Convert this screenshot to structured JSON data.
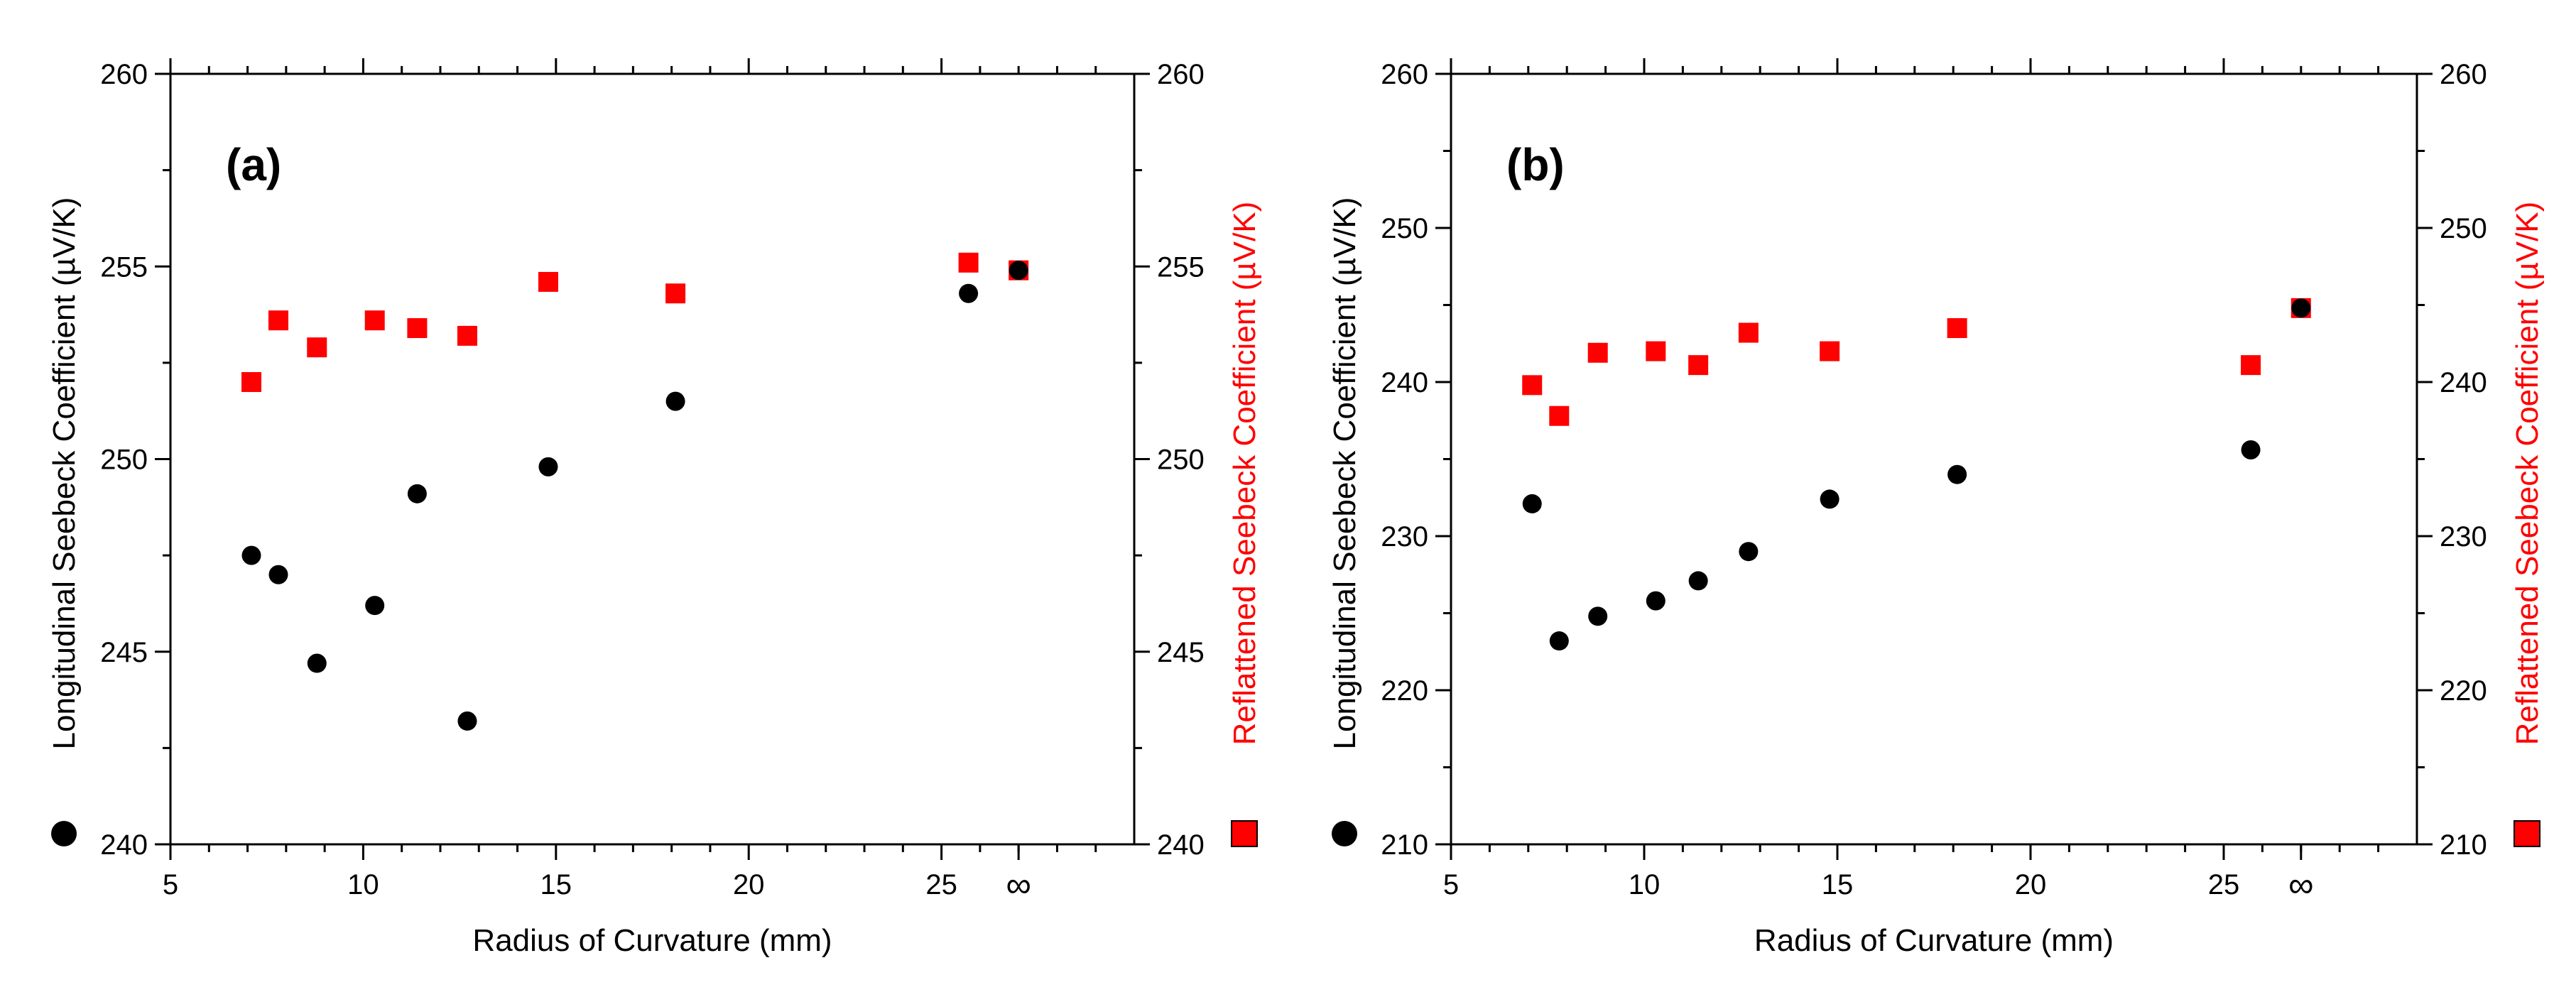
{
  "chart_data": [
    {
      "type": "scatter",
      "panel_label": "(a)",
      "panel_letter": "a",
      "xlabel": "Radius of Curvature (mm)",
      "ylabel_left": "Longitudinal Seebeck Coefficient (µV/K)",
      "ylabel_right": "Reflattened Seebeck Coefficient (µV/K)",
      "xlim": [
        5,
        30
      ],
      "x_ticks": [
        5,
        10,
        15,
        20,
        25
      ],
      "x_tick_labels": [
        "5",
        "10",
        "15",
        "20",
        "25"
      ],
      "infinity_x": 27,
      "infinity_label": "∞",
      "ylim": [
        240,
        260
      ],
      "y_ticks": [
        240,
        245,
        250,
        255,
        260
      ],
      "y_tick_labels": [
        "240",
        "245",
        "250",
        "255",
        "260"
      ],
      "series": [
        {
          "name": "Longitudinal Seebeck Coefficient",
          "marker": "circle",
          "color": "#000000",
          "points": [
            [
              7.1,
              247.5
            ],
            [
              7.8,
              247.0
            ],
            [
              8.8,
              244.7
            ],
            [
              10.3,
              246.2
            ],
            [
              11.4,
              249.1
            ],
            [
              12.7,
              243.2
            ],
            [
              14.8,
              249.8
            ],
            [
              18.1,
              251.5
            ],
            [
              25.7,
              254.3
            ],
            [
              27.0,
              254.9
            ]
          ]
        },
        {
          "name": "Reflattened Seebeck Coefficient",
          "marker": "square",
          "color": "#ff0000",
          "points": [
            [
              7.1,
              252.0
            ],
            [
              7.8,
              253.6
            ],
            [
              8.8,
              252.9
            ],
            [
              10.3,
              253.6
            ],
            [
              11.4,
              253.4
            ],
            [
              12.7,
              253.2
            ],
            [
              14.8,
              254.6
            ],
            [
              18.1,
              254.3
            ],
            [
              25.7,
              255.1
            ],
            [
              27.0,
              254.9
            ]
          ]
        }
      ]
    },
    {
      "type": "scatter",
      "panel_label": "(b)",
      "panel_letter": "b",
      "xlabel": "Radius of Curvature (mm)",
      "ylabel_left": "Longitudinal Seebeck Coefficient (µV/K)",
      "ylabel_right": "Reflattened Seebeck Coefficient (µV/K)",
      "xlim": [
        5,
        30
      ],
      "x_ticks": [
        5,
        10,
        15,
        20,
        25
      ],
      "x_tick_labels": [
        "5",
        "10",
        "15",
        "20",
        "25"
      ],
      "infinity_x": 27,
      "infinity_label": "∞",
      "ylim": [
        210,
        260
      ],
      "y_ticks": [
        210,
        220,
        230,
        240,
        250,
        260
      ],
      "y_tick_labels": [
        "210",
        "220",
        "230",
        "240",
        "250",
        "260"
      ],
      "series": [
        {
          "name": "Longitudinal Seebeck Coefficient",
          "marker": "circle",
          "color": "#000000",
          "points": [
            [
              7.1,
              232.1
            ],
            [
              7.8,
              223.2
            ],
            [
              8.8,
              224.8
            ],
            [
              10.3,
              225.8
            ],
            [
              11.4,
              227.1
            ],
            [
              12.7,
              229.0
            ],
            [
              14.8,
              232.4
            ],
            [
              18.1,
              234.0
            ],
            [
              25.7,
              235.6
            ],
            [
              27.0,
              244.8
            ]
          ]
        },
        {
          "name": "Reflattened Seebeck Coefficient",
          "marker": "square",
          "color": "#ff0000",
          "points": [
            [
              7.1,
              239.8
            ],
            [
              7.8,
              237.8
            ],
            [
              8.8,
              241.9
            ],
            [
              10.3,
              242.0
            ],
            [
              11.4,
              241.1
            ],
            [
              12.7,
              243.2
            ],
            [
              14.8,
              242.0
            ],
            [
              18.1,
              243.5
            ],
            [
              25.7,
              241.1
            ],
            [
              27.0,
              244.8
            ]
          ]
        }
      ]
    }
  ]
}
